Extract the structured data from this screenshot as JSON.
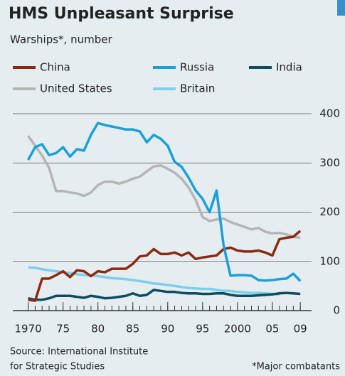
{
  "chart_data": {
    "type": "line",
    "title": "HMS Unpleasant Surprise",
    "subtitle": "Warships*, number",
    "source": [
      "Source: International Institute",
      "for Strategic Studies"
    ],
    "footnote": "*Major combatants",
    "x": [
      1970,
      1971,
      1972,
      1973,
      1974,
      1975,
      1976,
      1977,
      1978,
      1979,
      1980,
      1981,
      1982,
      1983,
      1984,
      1985,
      1986,
      1987,
      1988,
      1989,
      1990,
      1991,
      1992,
      1993,
      1994,
      1995,
      1996,
      1997,
      1998,
      1999,
      2000,
      2001,
      2002,
      2003,
      2004,
      2005,
      2006,
      2007,
      2008,
      2009
    ],
    "series": [
      {
        "name": "China",
        "color": "#8a2a12",
        "values": [
          22,
          20,
          65,
          65,
          72,
          80,
          68,
          82,
          80,
          70,
          80,
          78,
          85,
          85,
          85,
          95,
          110,
          112,
          125,
          115,
          115,
          118,
          112,
          118,
          105,
          108,
          110,
          112,
          125,
          128,
          122,
          120,
          120,
          122,
          118,
          112,
          145,
          148,
          150,
          162
        ]
      },
      {
        "name": "Russia",
        "color": "#1aa0d8",
        "values": [
          306,
          332,
          338,
          316,
          320,
          332,
          313,
          328,
          325,
          357,
          381,
          377,
          374,
          371,
          368,
          368,
          364,
          342,
          357,
          349,
          335,
          302,
          292,
          270,
          244,
          227,
          200,
          244,
          133,
          71,
          72,
          72,
          71,
          62,
          61,
          62,
          64,
          65,
          75,
          60
        ]
      },
      {
        "name": "India",
        "color": "#0e4c60",
        "values": [
          25,
          22,
          22,
          25,
          30,
          30,
          30,
          28,
          26,
          30,
          28,
          25,
          26,
          28,
          30,
          35,
          30,
          32,
          42,
          40,
          38,
          38,
          36,
          35,
          35,
          34,
          34,
          35,
          35,
          32,
          30,
          30,
          30,
          31,
          32,
          33,
          35,
          36,
          35,
          34
        ]
      },
      {
        "name": "United States",
        "color": "#b5b5b5",
        "values": [
          355,
          335,
          315,
          290,
          243,
          243,
          240,
          238,
          233,
          240,
          255,
          262,
          262,
          258,
          262,
          268,
          272,
          283,
          293,
          295,
          288,
          280,
          268,
          250,
          225,
          190,
          182,
          185,
          187,
          180,
          175,
          170,
          165,
          168,
          160,
          157,
          158,
          155,
          150,
          148
        ]
      },
      {
        "name": "Britain",
        "color": "#7ccfee",
        "values": [
          88,
          87,
          84,
          82,
          80,
          78,
          76,
          74,
          72,
          72,
          70,
          68,
          66,
          65,
          64,
          62,
          60,
          58,
          55,
          54,
          52,
          50,
          48,
          46,
          45,
          44,
          44,
          42,
          40,
          40,
          38,
          37,
          36,
          36,
          35,
          34,
          33,
          null,
          null,
          null
        ]
      }
    ],
    "xlim": [
      1967.8,
      2009.8
    ],
    "xticks": [
      {
        "value": 1970,
        "label": "1970"
      },
      {
        "value": 1975,
        "label": "75"
      },
      {
        "value": 1980,
        "label": "80"
      },
      {
        "value": 1985,
        "label": "85"
      },
      {
        "value": 1990,
        "label": "90"
      },
      {
        "value": 1995,
        "label": "95"
      },
      {
        "value": 2000,
        "label": "2000"
      },
      {
        "value": 2005,
        "label": "05"
      },
      {
        "value": 2009,
        "label": "09"
      }
    ],
    "ylim": [
      0,
      400
    ],
    "yticks": [
      0,
      100,
      200,
      300,
      400
    ],
    "grid": true
  }
}
